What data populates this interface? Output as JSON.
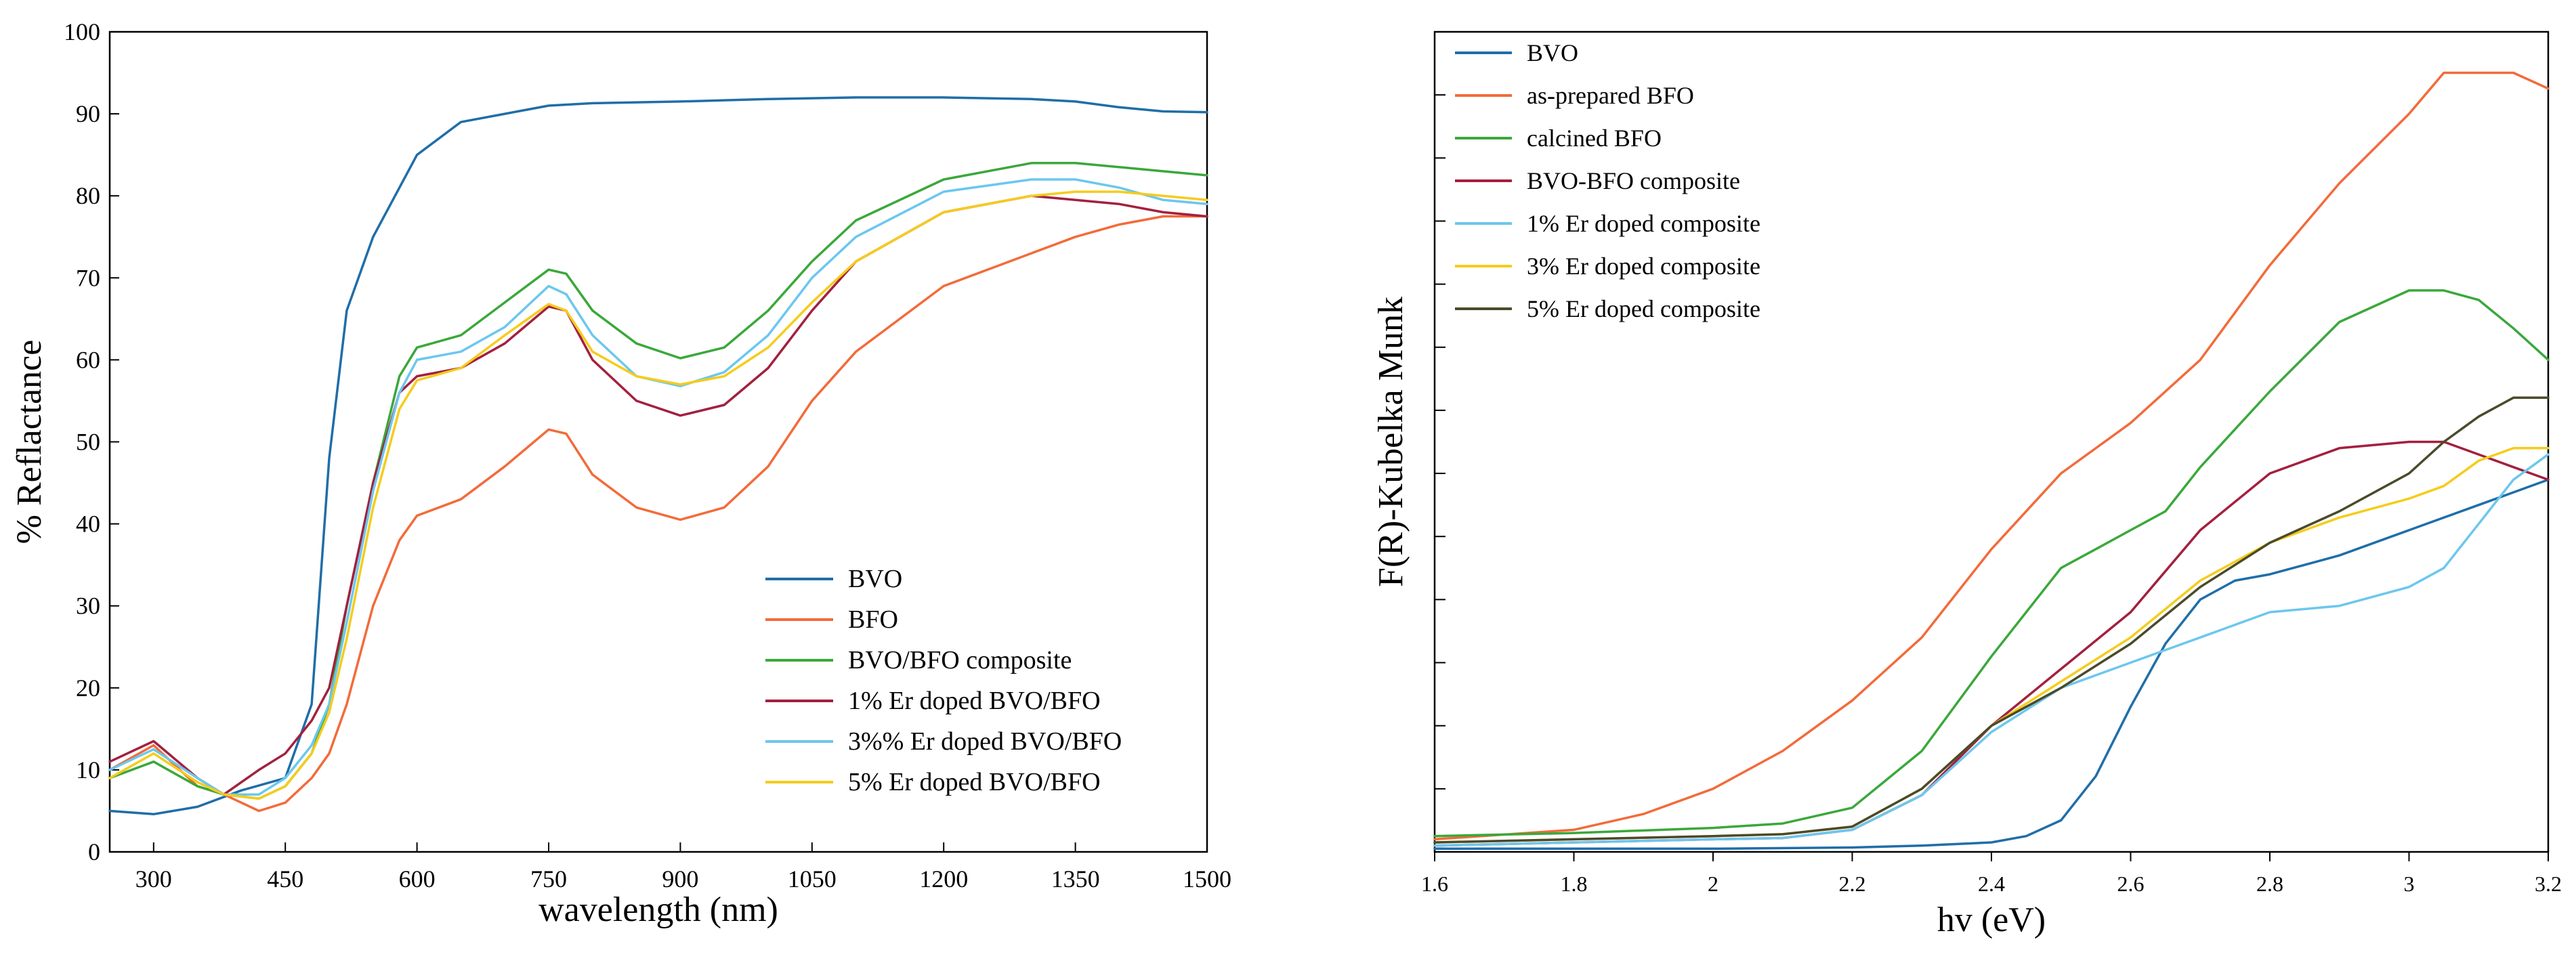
{
  "chart_data": [
    {
      "type": "line",
      "title": "",
      "xlabel": "wavelength (nm)",
      "ylabel": "% Reflactance",
      "xlim": [
        250,
        1500
      ],
      "ylim": [
        0,
        100
      ],
      "xticks": [
        300,
        450,
        600,
        750,
        900,
        1050,
        1200,
        1350,
        1500
      ],
      "yticks": [
        0,
        10,
        20,
        30,
        40,
        50,
        60,
        70,
        80,
        90,
        100
      ],
      "grid": false,
      "legend_position": "bottom-right",
      "series": [
        {
          "name": "BVO",
          "color": "#1f6ea8",
          "x": [
            250,
            300,
            350,
            400,
            450,
            480,
            500,
            520,
            550,
            600,
            650,
            700,
            750,
            800,
            900,
            1000,
            1100,
            1200,
            1300,
            1350,
            1400,
            1450,
            1500
          ],
          "y": [
            5,
            4.6,
            5.5,
            7.5,
            9,
            18,
            48,
            66,
            75,
            85,
            89,
            90,
            91,
            91.3,
            91.5,
            91.8,
            92,
            92,
            91.8,
            91.5,
            90.8,
            90.3,
            90.2
          ]
        },
        {
          "name": "BFO",
          "color": "#f26b3a",
          "x": [
            250,
            300,
            350,
            380,
            420,
            450,
            480,
            500,
            520,
            550,
            580,
            600,
            650,
            700,
            750,
            770,
            800,
            850,
            900,
            950,
            1000,
            1050,
            1100,
            1200,
            1300,
            1350,
            1400,
            1450,
            1500
          ],
          "y": [
            10,
            13,
            8,
            7,
            5,
            6,
            9,
            12,
            18,
            30,
            38,
            41,
            43,
            47,
            51.5,
            51,
            46,
            42,
            40.5,
            42,
            47,
            55,
            61,
            69,
            73,
            75,
            76.5,
            77.5,
            77.5
          ]
        },
        {
          "name": "BVO/BFO composite",
          "color": "#3aa83a",
          "x": [
            250,
            300,
            350,
            380,
            420,
            450,
            480,
            500,
            520,
            550,
            580,
            600,
            650,
            700,
            750,
            770,
            800,
            850,
            900,
            950,
            1000,
            1050,
            1100,
            1200,
            1300,
            1350,
            1400,
            1450,
            1500
          ],
          "y": [
            9,
            11,
            8,
            7,
            6.5,
            8,
            12,
            18,
            30,
            45,
            58,
            61.5,
            63,
            67,
            71,
            70.5,
            66,
            62,
            60.2,
            61.5,
            66,
            72,
            77,
            82,
            84,
            84,
            83.5,
            83,
            82.5
          ]
        },
        {
          "name": "1% Er doped BVO/BFO",
          "color": "#a3203f",
          "x": [
            250,
            300,
            350,
            380,
            420,
            450,
            480,
            500,
            520,
            550,
            580,
            600,
            650,
            700,
            750,
            770,
            800,
            850,
            900,
            950,
            1000,
            1050,
            1100,
            1200,
            1300,
            1350,
            1400,
            1450,
            1500
          ],
          "y": [
            11,
            13.5,
            9,
            7,
            10,
            12,
            16,
            20,
            30,
            45,
            56,
            58,
            59,
            62,
            66.5,
            66,
            60,
            55,
            53.2,
            54.5,
            59,
            66,
            72,
            78,
            80,
            79.5,
            79,
            78,
            77.5
          ]
        },
        {
          "name": "3%% Er doped BVO/BFO",
          "color": "#6cc7ee",
          "x": [
            250,
            300,
            350,
            380,
            420,
            450,
            480,
            500,
            520,
            550,
            580,
            600,
            650,
            700,
            750,
            770,
            800,
            850,
            900,
            950,
            1000,
            1050,
            1100,
            1200,
            1300,
            1350,
            1400,
            1450,
            1500
          ],
          "y": [
            10,
            12.5,
            9,
            7,
            7,
            9,
            13,
            18,
            28,
            44,
            56,
            60,
            61,
            64,
            69,
            68,
            63,
            58,
            56.8,
            58.5,
            63,
            70,
            75,
            80.5,
            82,
            82,
            81,
            79.5,
            79
          ]
        },
        {
          "name": "5% Er doped BVO/BFO",
          "color": "#f5cc1c",
          "x": [
            250,
            300,
            350,
            380,
            420,
            450,
            480,
            500,
            520,
            550,
            580,
            600,
            650,
            700,
            750,
            770,
            800,
            850,
            900,
            950,
            1000,
            1050,
            1100,
            1200,
            1300,
            1350,
            1400,
            1450,
            1500
          ],
          "y": [
            9,
            12,
            8.5,
            7,
            6.5,
            8,
            12,
            17,
            26,
            42,
            54,
            57.5,
            59,
            63,
            66.8,
            66,
            61,
            58,
            57,
            58,
            61.5,
            67,
            72,
            78,
            80,
            80.5,
            80.5,
            80,
            79.5
          ]
        }
      ]
    },
    {
      "type": "line",
      "title": "",
      "xlabel": "hv (eV)",
      "ylabel": "F(R)-Kubelka Munk",
      "xlim": [
        1.6,
        3.2
      ],
      "ylim": [
        0,
        13
      ],
      "xticks": [
        1.6,
        1.8,
        2.0,
        2.2,
        2.4,
        2.6,
        2.8,
        3.0,
        3.2
      ],
      "xtick_labels": [
        "1.6",
        "1.8",
        "2",
        "2.2",
        "2.4",
        "2.6",
        "2.8",
        "3",
        "3.2"
      ],
      "yticks": [
        1,
        2,
        3,
        4,
        5,
        6,
        7,
        8,
        9,
        10,
        11,
        12,
        13
      ],
      "grid": false,
      "legend_position": "top-left",
      "series": [
        {
          "name": "BVO",
          "color": "#1f6ea8",
          "x": [
            1.6,
            1.8,
            2.0,
            2.2,
            2.3,
            2.4,
            2.45,
            2.5,
            2.55,
            2.6,
            2.65,
            2.7,
            2.75,
            2.8,
            2.9,
            3.0,
            3.1,
            3.2
          ],
          "y": [
            0.05,
            0.05,
            0.05,
            0.07,
            0.1,
            0.15,
            0.25,
            0.5,
            1.2,
            2.3,
            3.3,
            4.0,
            4.3,
            4.4,
            4.7,
            5.1,
            5.5,
            5.9
          ]
        },
        {
          "name": "as-prepared BFO",
          "color": "#f26b3a",
          "x": [
            1.6,
            1.8,
            1.9,
            2.0,
            2.1,
            2.2,
            2.3,
            2.4,
            2.5,
            2.6,
            2.7,
            2.8,
            2.9,
            3.0,
            3.05,
            3.1,
            3.15,
            3.2
          ],
          "y": [
            0.2,
            0.35,
            0.6,
            1.0,
            1.6,
            2.4,
            3.4,
            4.8,
            6.0,
            6.8,
            7.8,
            9.3,
            10.6,
            11.7,
            12.35,
            12.35,
            12.35,
            12.1
          ]
        },
        {
          "name": "calcined BFO",
          "color": "#3aa83a",
          "x": [
            1.6,
            1.8,
            2.0,
            2.1,
            2.2,
            2.3,
            2.4,
            2.5,
            2.55,
            2.6,
            2.65,
            2.7,
            2.8,
            2.9,
            3.0,
            3.05,
            3.1,
            3.15,
            3.2
          ],
          "y": [
            0.25,
            0.3,
            0.38,
            0.45,
            0.7,
            1.6,
            3.1,
            4.5,
            4.8,
            5.1,
            5.4,
            6.1,
            7.3,
            8.4,
            8.9,
            8.9,
            8.75,
            8.3,
            7.8
          ]
        },
        {
          "name": "BVO-BFO composite",
          "color": "#a3203f",
          "x": [
            1.6,
            1.8,
            2.0,
            2.1,
            2.2,
            2.3,
            2.4,
            2.5,
            2.6,
            2.7,
            2.8,
            2.9,
            3.0,
            3.05,
            3.1,
            3.15,
            3.2
          ],
          "y": [
            0.1,
            0.15,
            0.2,
            0.22,
            0.35,
            0.9,
            2.0,
            2.9,
            3.8,
            5.1,
            6.0,
            6.4,
            6.5,
            6.5,
            6.3,
            6.1,
            5.9
          ]
        },
        {
          "name": "1% Er doped composite",
          "color": "#6cc7ee",
          "x": [
            1.6,
            1.8,
            2.0,
            2.1,
            2.2,
            2.3,
            2.4,
            2.5,
            2.6,
            2.7,
            2.8,
            2.9,
            3.0,
            3.05,
            3.1,
            3.15,
            3.2
          ],
          "y": [
            0.1,
            0.15,
            0.2,
            0.22,
            0.35,
            0.9,
            1.9,
            2.6,
            3.0,
            3.4,
            3.8,
            3.9,
            4.2,
            4.5,
            5.2,
            5.9,
            6.3
          ]
        },
        {
          "name": "3% Er doped composite",
          "color": "#f5cc1c",
          "x": [
            1.6,
            1.8,
            2.0,
            2.1,
            2.2,
            2.3,
            2.4,
            2.5,
            2.6,
            2.7,
            2.8,
            2.9,
            3.0,
            3.05,
            3.1,
            3.15,
            3.2
          ],
          "y": [
            0.15,
            0.2,
            0.25,
            0.28,
            0.4,
            1.0,
            2.0,
            2.7,
            3.4,
            4.3,
            4.9,
            5.3,
            5.6,
            5.8,
            6.2,
            6.4,
            6.4
          ]
        },
        {
          "name": "5% Er doped composite",
          "color": "#4a4a2a",
          "x": [
            1.6,
            1.8,
            2.0,
            2.1,
            2.2,
            2.3,
            2.4,
            2.5,
            2.6,
            2.7,
            2.8,
            2.9,
            3.0,
            3.05,
            3.1,
            3.15,
            3.2
          ],
          "y": [
            0.15,
            0.2,
            0.25,
            0.28,
            0.4,
            1.0,
            2.0,
            2.6,
            3.3,
            4.2,
            4.9,
            5.4,
            6.0,
            6.5,
            6.9,
            7.2,
            7.2
          ]
        }
      ]
    }
  ]
}
